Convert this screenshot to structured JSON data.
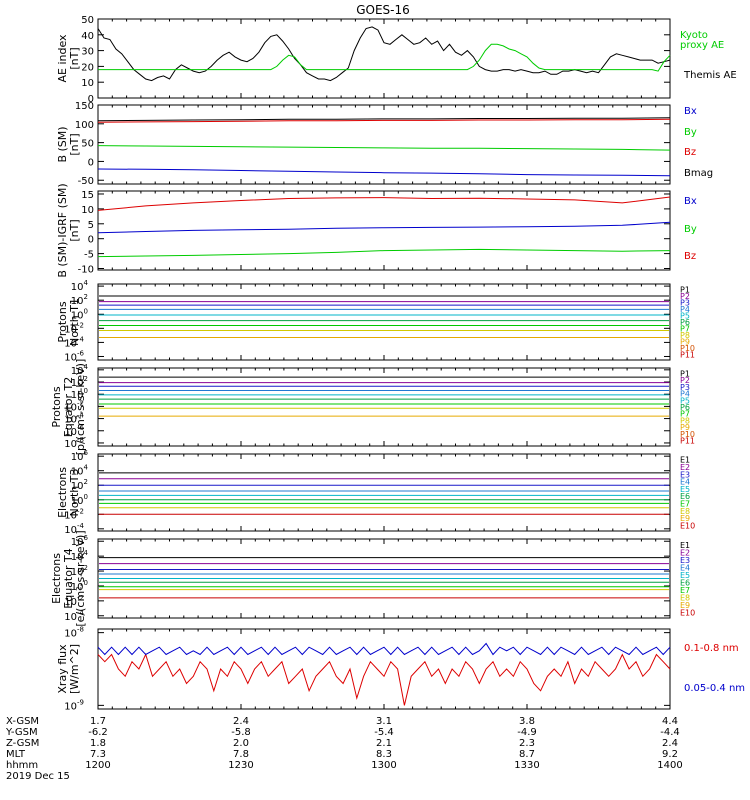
{
  "title": "GOES-16",
  "colors": {
    "black": "#000000",
    "red": "#dd0000",
    "green": "#00cc00",
    "blue": "#0000cc",
    "p_channels": [
      "#000000",
      "#8a0096",
      "#1818c8",
      "#1e78d2",
      "#00b4c8",
      "#00a040",
      "#00c800",
      "#d2c800",
      "#e6aa00",
      "#d25000",
      "#c80000"
    ],
    "e_channels": [
      "#000000",
      "#8a0096",
      "#1818c8",
      "#1e78d2",
      "#00b4c8",
      "#00a040",
      "#00c800",
      "#d2c800",
      "#e6aa00",
      "#c80000"
    ]
  },
  "x_axis": {
    "rows": [
      {
        "label": "X-GSM",
        "values": [
          "1.7",
          "2.4",
          "3.1",
          "3.8",
          "4.4"
        ]
      },
      {
        "label": "Y-GSM",
        "values": [
          "-6.2",
          "-5.8",
          "-5.4",
          "-4.9",
          "-4.4"
        ]
      },
      {
        "label": "Z-GSM",
        "values": [
          "1.8",
          "2.0",
          "2.1",
          "2.3",
          "2.4"
        ]
      },
      {
        "label": "MLT",
        "values": [
          "7.3",
          "7.8",
          "8.3",
          "8.7",
          "9.2"
        ]
      },
      {
        "label": "hhmm",
        "values": [
          "1200",
          "1230",
          "1300",
          "1330",
          "1400"
        ]
      }
    ],
    "date": "2019 Dec 15"
  },
  "chart_data": [
    {
      "type": "line",
      "ylabel": [
        "AE index",
        "[nT]"
      ],
      "yticks": [
        "0",
        "10",
        "20",
        "30",
        "40",
        "50"
      ],
      "ylim": [
        0,
        50
      ],
      "series": [
        {
          "name": "Themis AE",
          "color": "black",
          "y": [
            44,
            38,
            37,
            31,
            28,
            23,
            18,
            15,
            12,
            11,
            13,
            14,
            12,
            18,
            21,
            19,
            17,
            16,
            17,
            20,
            24,
            27,
            29,
            26,
            24,
            23,
            25,
            29,
            35,
            39,
            40,
            36,
            31,
            25,
            21,
            16,
            14,
            12,
            12,
            11,
            13,
            16,
            19,
            30,
            38,
            44,
            45,
            43,
            35,
            34,
            37,
            40,
            37,
            34,
            35,
            38,
            34,
            36,
            30,
            34,
            29,
            27,
            30,
            26,
            20,
            18,
            17,
            17,
            18,
            18,
            17,
            18,
            17,
            16,
            16,
            17,
            15,
            15,
            17,
            17,
            18,
            17,
            16,
            17,
            16,
            21,
            26,
            28,
            27,
            26,
            25,
            24,
            24,
            24,
            22,
            23,
            24
          ]
        },
        {
          "name": "Kyoto proxy AE",
          "color": "green",
          "y": [
            18,
            18,
            18,
            18,
            18,
            18,
            18,
            18,
            18,
            18,
            18,
            18,
            18,
            18,
            18,
            18,
            18,
            18,
            18,
            18,
            18,
            18,
            18,
            18,
            18,
            18,
            18,
            18,
            18,
            18,
            20,
            24,
            27,
            26,
            21,
            18,
            18,
            18,
            18,
            18,
            18,
            18,
            18,
            18,
            18,
            18,
            18,
            18,
            18,
            18,
            18,
            18,
            18,
            18,
            18,
            18,
            18,
            18,
            18,
            18,
            18,
            18,
            18,
            20,
            24,
            30,
            34,
            34,
            33,
            31,
            30,
            28,
            26,
            22,
            19,
            18,
            18,
            18,
            18,
            18,
            18,
            18,
            18,
            18,
            18,
            18,
            18,
            18,
            18,
            18,
            18,
            18,
            18,
            18,
            17,
            23,
            27
          ]
        }
      ],
      "legend": [
        "Kyoto",
        "proxy AE",
        "Themis AE"
      ]
    },
    {
      "type": "line",
      "ylabel": [
        "B (SM)",
        "[nT]"
      ],
      "yticks": [
        "-50",
        "0",
        "50",
        "100",
        "150"
      ],
      "ylim": [
        -60,
        150
      ],
      "series": [
        {
          "name": "Bx",
          "color": "blue",
          "y": [
            -20,
            -21,
            -22,
            -24,
            -26,
            -28,
            -30,
            -31,
            -33,
            -35,
            -36,
            -37,
            -38
          ]
        },
        {
          "name": "By",
          "color": "green",
          "y": [
            42,
            41,
            40,
            39,
            38,
            37,
            36,
            35,
            35,
            34,
            33,
            32,
            30
          ]
        },
        {
          "name": "Bz",
          "color": "red",
          "y": [
            104,
            105,
            106,
            107,
            108,
            108,
            109,
            109,
            110,
            110,
            111,
            111,
            112
          ]
        },
        {
          "name": "Bmag",
          "color": "black",
          "y": [
            108,
            109,
            110,
            111,
            112,
            112,
            113,
            113,
            114,
            114,
            115,
            115,
            116
          ]
        }
      ],
      "legend": [
        "Bx",
        "By",
        "Bz",
        "Bmag"
      ]
    },
    {
      "type": "line",
      "ylabel": [
        "B (SM)-IGRF (SM)",
        "[nT]"
      ],
      "yticks": [
        "-10",
        "-5",
        "0",
        "5",
        "10",
        "15"
      ],
      "ylim": [
        -10.5,
        16
      ],
      "series": [
        {
          "name": "Bx",
          "color": "blue",
          "y": [
            2.0,
            2.4,
            2.8,
            3.0,
            3.2,
            3.5,
            3.7,
            3.8,
            3.9,
            4.0,
            4.2,
            4.5,
            5.5
          ]
        },
        {
          "name": "By",
          "color": "green",
          "y": [
            -6.0,
            -5.8,
            -5.6,
            -5.3,
            -5.0,
            -4.6,
            -4.0,
            -3.8,
            -3.6,
            -3.8,
            -4.0,
            -4.2,
            -4.0
          ]
        },
        {
          "name": "Bz",
          "color": "red",
          "y": [
            9.5,
            11.0,
            12.0,
            12.8,
            13.5,
            13.7,
            13.8,
            13.5,
            13.6,
            13.3,
            13.0,
            12.0,
            14.0
          ]
        }
      ],
      "legend": [
        "Bx",
        "By",
        "Bz"
      ]
    },
    {
      "type": "log-lines",
      "ylabel": [
        "Protons",
        "North T1"
      ],
      "yticks": [
        "10^4",
        "10^2",
        "10^0",
        "10^-2",
        "10^-4",
        "10^-6"
      ],
      "ylim_exp": [
        -6.5,
        4.3
      ],
      "levels_exp": [
        2.6,
        1.8,
        1.3,
        0.7,
        -0.1,
        -0.9,
        -1.6,
        -2.3,
        -3.3,
        -99,
        -99
      ],
      "legend": [
        "P1",
        "P2",
        "P3",
        "P4",
        "P5",
        "P6",
        "P7",
        "P8",
        "P9",
        "P10",
        "P11"
      ]
    },
    {
      "type": "log-lines",
      "ylabel": [
        "Protons",
        "Equator T2",
        "[p/(cm²-s-sr-keV)]"
      ],
      "yticks": [
        "10^4",
        "10^2",
        "10^0",
        "10^-2",
        "10^-4",
        "10^-6",
        "10^-8"
      ],
      "ylim_exp": [
        -8.5,
        4.3
      ],
      "levels_exp": [
        2.8,
        1.9,
        1.3,
        0.6,
        -0.1,
        -0.8,
        -1.6,
        -2.3,
        -3.6,
        -99,
        -99
      ],
      "legend": [
        "P1",
        "P2",
        "P3",
        "P4",
        "P5",
        "P6",
        "P7",
        "P8",
        "P9",
        "P10",
        "P11"
      ]
    },
    {
      "type": "log-lines",
      "ylabel": [
        "Electrons",
        "North T3"
      ],
      "yticks": [
        "10^6",
        "10^4",
        "10^2",
        "10^0",
        "10^-2",
        "10^-4"
      ],
      "ylim_exp": [
        -4.3,
        6.3
      ],
      "levels_exp": [
        3.7,
        2.9,
        2.0,
        1.2,
        0.6,
        0.0,
        -0.5,
        -1.1,
        -99,
        -2.0
      ],
      "legend": [
        "E1",
        "E2",
        "E3",
        "E4",
        "E5",
        "E6",
        "E7",
        "E8",
        "E9",
        "E10"
      ]
    },
    {
      "type": "log-lines",
      "ylabel": [
        "Electrons",
        "Equator T4",
        "[e/(cm²-s-sr-keV)]"
      ],
      "yticks": [
        "10^6",
        "10^4",
        "10^2",
        "10^0",
        "10^-2",
        "10^-4"
      ],
      "ylim_exp": [
        -4.3,
        6.3
      ],
      "levels_exp": [
        3.8,
        3.0,
        2.2,
        1.6,
        1.0,
        0.5,
        -0.1,
        -0.5,
        -99,
        -1.6
      ],
      "legend": [
        "E1",
        "E2",
        "E3",
        "E4",
        "E5",
        "E6",
        "E7",
        "E8",
        "E9",
        "E10"
      ]
    },
    {
      "type": "line",
      "ylabel": [
        "Xray flux",
        "[W/m^2]"
      ],
      "yticks": [
        "10^-8",
        "10^-9"
      ],
      "ylim_exp": [
        -9.05,
        -7.95
      ],
      "series": [
        {
          "name": "0.1-0.8 nm",
          "color": "red",
          "y": [
            -8.3,
            -8.4,
            -8.3,
            -8.5,
            -8.6,
            -8.4,
            -8.5,
            -8.3,
            -8.6,
            -8.5,
            -8.4,
            -8.6,
            -8.5,
            -8.7,
            -8.6,
            -8.4,
            -8.5,
            -8.8,
            -8.5,
            -8.6,
            -8.4,
            -8.5,
            -8.7,
            -8.5,
            -8.4,
            -8.6,
            -8.5,
            -8.4,
            -8.7,
            -8.6,
            -8.5,
            -8.8,
            -8.6,
            -8.5,
            -8.4,
            -8.6,
            -8.7,
            -8.5,
            -8.9,
            -8.6,
            -8.4,
            -8.5,
            -8.6,
            -8.4,
            -8.5,
            -9.0,
            -8.6,
            -8.5,
            -8.4,
            -8.6,
            -8.5,
            -8.7,
            -8.5,
            -8.6,
            -8.4,
            -8.5,
            -8.7,
            -8.5,
            -8.4,
            -8.6,
            -8.5,
            -8.6,
            -8.4,
            -8.5,
            -8.7,
            -8.8,
            -8.6,
            -8.5,
            -8.6,
            -8.4,
            -8.7,
            -8.5,
            -8.6,
            -8.4,
            -8.5,
            -8.6,
            -8.5,
            -8.3,
            -8.5,
            -8.4,
            -8.6,
            -8.5,
            -8.3,
            -8.4,
            -8.5
          ]
        },
        {
          "name": "0.05-0.4 nm",
          "color": "blue",
          "y": [
            -8.2,
            -8.3,
            -8.2,
            -8.3,
            -8.2,
            -8.3,
            -8.2,
            -8.3,
            -8.25,
            -8.2,
            -8.3,
            -8.25,
            -8.2,
            -8.3,
            -8.25,
            -8.3,
            -8.2,
            -8.3,
            -8.25,
            -8.2,
            -8.3,
            -8.2,
            -8.3,
            -8.25,
            -8.2,
            -8.3,
            -8.2,
            -8.3,
            -8.25,
            -8.2,
            -8.3,
            -8.2,
            -8.25,
            -8.3,
            -8.2,
            -8.3,
            -8.25,
            -8.2,
            -8.3,
            -8.2,
            -8.3,
            -8.25,
            -8.2,
            -8.3,
            -8.2,
            -8.3,
            -8.25,
            -8.2,
            -8.3,
            -8.2,
            -8.3,
            -8.25,
            -8.2,
            -8.3,
            -8.2,
            -8.3,
            -8.25,
            -8.15,
            -8.3,
            -8.2,
            -8.25,
            -8.2,
            -8.3,
            -8.2,
            -8.25,
            -8.3,
            -8.2,
            -8.3,
            -8.2,
            -8.25,
            -8.3,
            -8.2,
            -8.3,
            -8.25,
            -8.2,
            -8.3,
            -8.2,
            -8.25,
            -8.3,
            -8.2,
            -8.3,
            -8.25,
            -8.2,
            -8.3,
            -8.2
          ]
        }
      ],
      "legend": [
        "0.1-0.8 nm",
        "0.05-0.4 nm"
      ]
    }
  ]
}
